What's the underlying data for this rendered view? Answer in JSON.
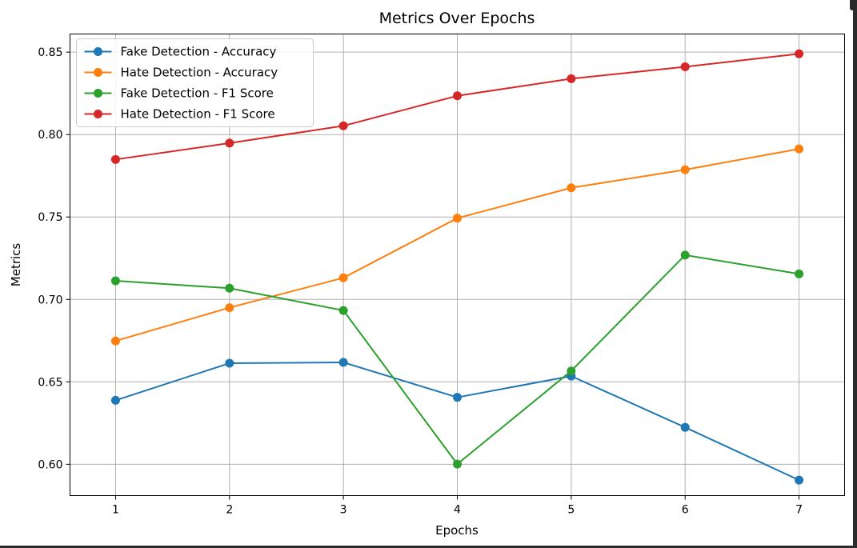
{
  "chart_data": {
    "type": "line",
    "title": "Metrics Over Epochs",
    "xlabel": "Epochs",
    "ylabel": "Metrics",
    "x": [
      1,
      2,
      3,
      4,
      5,
      6,
      7
    ],
    "xlim": [
      0.6,
      7.4
    ],
    "ylim": [
      0.581,
      0.861
    ],
    "xticks": [
      1,
      2,
      3,
      4,
      5,
      6,
      7
    ],
    "yticks": [
      0.6,
      0.65,
      0.7,
      0.75,
      0.8,
      0.85
    ],
    "ytick_labels": [
      "0.60",
      "0.65",
      "0.70",
      "0.75",
      "0.80",
      "0.85"
    ],
    "grid": true,
    "legend_position": "top-left",
    "marker": "circle",
    "series": [
      {
        "name": "Fake Detection - Accuracy",
        "color": "#1f77b4",
        "values": [
          0.6388,
          0.6613,
          0.6618,
          0.6406,
          0.6535,
          0.6224,
          0.5904
        ]
      },
      {
        "name": "Hate Detection - Accuracy",
        "color": "#ff7f0e",
        "values": [
          0.6748,
          0.695,
          0.7131,
          0.7493,
          0.7677,
          0.7787,
          0.7913
        ]
      },
      {
        "name": "Fake Detection - F1 Score",
        "color": "#2ca02c",
        "values": [
          0.7113,
          0.7068,
          0.6933,
          0.6001,
          0.6566,
          0.7269,
          0.7155
        ]
      },
      {
        "name": "Hate Detection - F1 Score",
        "color": "#d62728",
        "values": [
          0.7849,
          0.7948,
          0.8053,
          0.8235,
          0.8339,
          0.8411,
          0.849
        ]
      }
    ]
  }
}
